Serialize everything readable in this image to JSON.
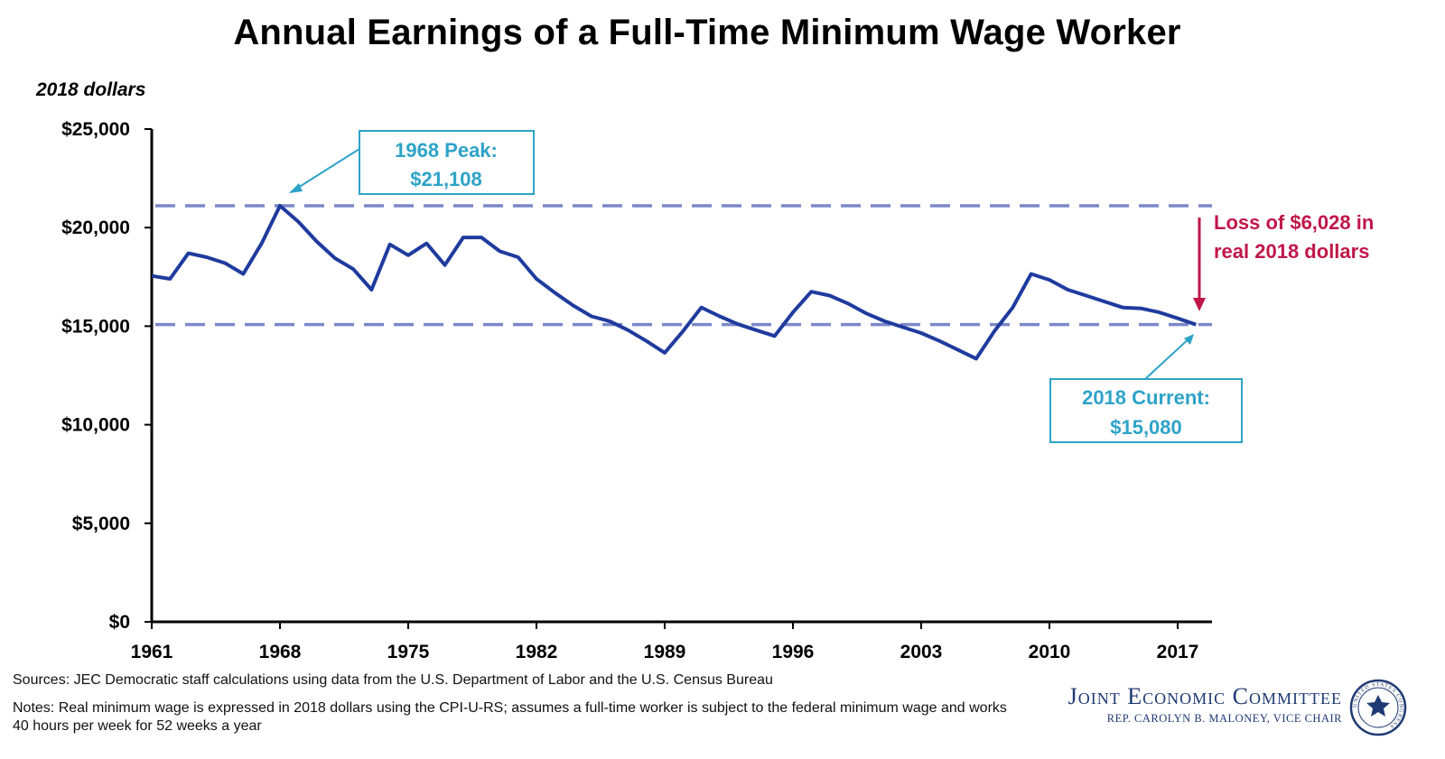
{
  "chart_data": {
    "type": "line",
    "title": "Annual Earnings of a Full-Time Minimum Wage Worker",
    "ylabel": "2018 dollars",
    "xlabel": "",
    "ylim": [
      0,
      25000
    ],
    "xlim": [
      1961,
      2018
    ],
    "x_ticks": [
      "1961",
      "1968",
      "1975",
      "1982",
      "1989",
      "1996",
      "2003",
      "2010",
      "2017"
    ],
    "y_ticks": [
      "$0",
      "$5,000",
      "$10,000",
      "$15,000",
      "$20,000",
      "$25,000"
    ],
    "y_tick_values": [
      0,
      5000,
      10000,
      15000,
      20000,
      25000
    ],
    "grid": false,
    "series": [
      {
        "color": "#1f3b9e",
        "x": [
          1961,
          1962,
          1963,
          1964,
          1965,
          1966,
          1967,
          1968,
          1969,
          1970,
          1971,
          1972,
          1973,
          1974,
          1975,
          1976,
          1977,
          1978,
          1979,
          1980,
          1981,
          1982,
          1983,
          1984,
          1985,
          1986,
          1987,
          1988,
          1989,
          1990,
          1991,
          1992,
          1993,
          1994,
          1995,
          1996,
          1997,
          1998,
          1999,
          2000,
          2001,
          2002,
          2003,
          2004,
          2005,
          2006,
          2007,
          2008,
          2009,
          2010,
          2011,
          2012,
          2013,
          2014,
          2015,
          2016,
          2017,
          2018
        ],
        "values": [
          17550,
          17400,
          18700,
          18500,
          18200,
          17650,
          19200,
          21108,
          20300,
          19300,
          18450,
          17900,
          16850,
          19150,
          18600,
          19200,
          18100,
          19500,
          19500,
          18800,
          18500,
          17400,
          16700,
          16050,
          15500,
          15250,
          14800,
          14250,
          13650,
          14750,
          15950,
          15500,
          15100,
          14800,
          14500,
          15700,
          16750,
          16550,
          16150,
          15650,
          15250,
          14950,
          14650,
          14250,
          13800,
          13350,
          14750,
          15950,
          17650,
          17350,
          16850,
          16550,
          16250,
          15950,
          15900,
          15700,
          15400,
          15080
        ]
      }
    ],
    "reference_lines": [
      {
        "value": 21108,
        "color": "#7b87c9",
        "style": "dashed"
      },
      {
        "value": 15080,
        "color": "#7b87c9",
        "style": "dashed"
      }
    ],
    "annotations": [
      {
        "line1": "1968 Peak:",
        "line2": "$21,108",
        "color": "#2ea3c8",
        "x": 1968,
        "y": 21108
      },
      {
        "line1": "2018 Current:",
        "line2": "$15,080",
        "color": "#2ea3c8",
        "x": 2018,
        "y": 15080
      },
      {
        "line1": "Loss of $6,028 in",
        "line2": "real 2018 dollars",
        "color": "#c0174a"
      }
    ]
  },
  "footer": {
    "sources": "Sources: JEC Democratic staff calculations using data from the U.S. Department of Labor and the U.S. Census Bureau",
    "notes": "Notes: Real minimum wage is expressed in 2018 dollars using the CPI-U-RS; assumes a full-time worker is subject to the federal minimum wage and works 40 hours per week for 52 weeks a year"
  },
  "logo": {
    "name": "Joint Economic Committee",
    "subtitle": "Rep. Carolyn B. Maloney, Vice Chair",
    "seal_text": "UNITED STATES CONGRESS"
  }
}
